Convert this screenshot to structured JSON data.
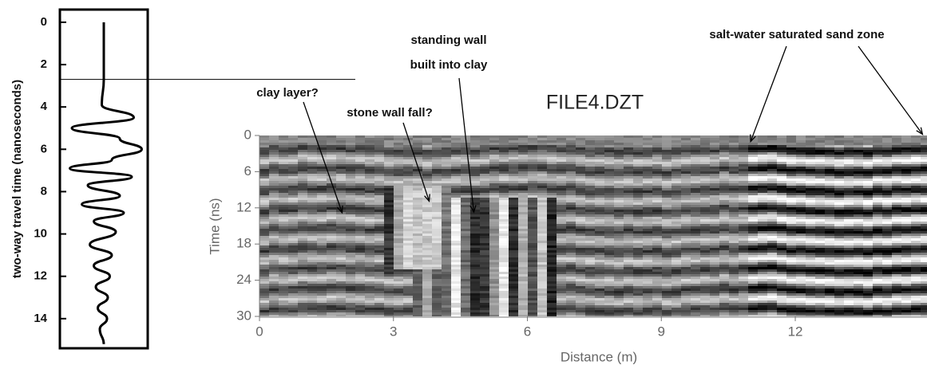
{
  "chart_data": [
    {
      "type": "line",
      "y_label": "two-way travel time (nanoseconds)",
      "ylim": [
        -0.6,
        15.4
      ],
      "yticks": [
        0,
        2,
        4,
        6,
        8,
        10,
        12,
        14
      ],
      "xlim": [
        -1.1,
        1.1
      ],
      "x": [
        0,
        2.7,
        3.9,
        4.5,
        5.0,
        5.5,
        6.0,
        6.5,
        6.9,
        7.3,
        7.7,
        8.2,
        8.6,
        9.0,
        9.4,
        9.9,
        10.5,
        11.0,
        11.5,
        12.0,
        12.5,
        13.0,
        13.5,
        14.0,
        14.5,
        15.2
      ],
      "values": [
        0,
        0,
        -0.05,
        0.75,
        -0.8,
        0.4,
        0.95,
        0.2,
        -0.85,
        0.7,
        -0.4,
        0.4,
        -0.55,
        0.5,
        -0.25,
        0.3,
        -0.35,
        0.2,
        -0.25,
        0.15,
        -0.2,
        0.1,
        -0.15,
        0.08,
        -0.1,
        0
      ],
      "threshold": 2.7,
      "color": "#000000"
    },
    {
      "type": "image",
      "title": "FILE4.DZT",
      "x_label": "Distance (m)",
      "y_label": "Time (ns)",
      "xlim": [
        0,
        14.95
      ],
      "xticks": [
        0,
        3,
        6,
        9,
        12
      ],
      "ylim": [
        0,
        30
      ],
      "yticks": [
        0,
        6,
        12,
        18,
        24,
        30
      ],
      "annotations": [
        {
          "text": [
            "clay layer?"
          ],
          "target": [
            1.85,
            12.8
          ]
        },
        {
          "text": [
            "stone wall fall?"
          ],
          "target": [
            3.8,
            10.9
          ]
        },
        {
          "text": [
            "standing wall",
            "built into clay"
          ],
          "target": [
            4.8,
            12.7
          ]
        },
        {
          "text": [
            "salt-water saturated sand zone"
          ],
          "target": [
            10.95,
            1.0
          ]
        }
      ]
    }
  ]
}
